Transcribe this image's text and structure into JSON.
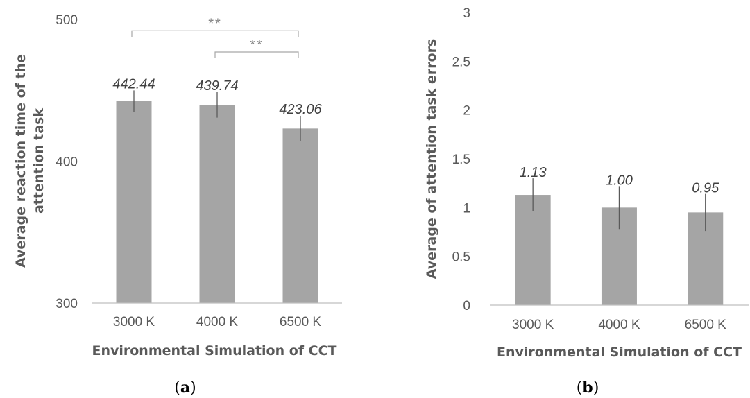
{
  "colors": {
    "bar": "#a5a5a5",
    "axis": "#bfbfbf",
    "error": "#595959",
    "bracket": "#a6a6a6"
  },
  "chart_data": [
    {
      "type": "bar",
      "panel_label": {
        "pre": "(",
        "bold": "a",
        "post": ")"
      },
      "categories": [
        "3000 K",
        "4000 K",
        "6500 K"
      ],
      "values": [
        442.44,
        439.74,
        423.06
      ],
      "data_labels": [
        "442.44",
        "439.74",
        "423.06"
      ],
      "error": [
        7.5,
        9,
        9
      ],
      "ylim": [
        300,
        500
      ],
      "yticks": [
        300,
        400,
        500
      ],
      "xlabel": "Environmental Simulation of CCT",
      "ylabel": [
        "Average reaction time of the",
        "attention task"
      ],
      "grid": false,
      "significance": [
        {
          "from": 0,
          "to": 2,
          "y": 492,
          "label": "**"
        },
        {
          "from": 1,
          "to": 2,
          "y": 477,
          "label": "**"
        }
      ]
    },
    {
      "type": "bar",
      "panel_label": {
        "pre": "(",
        "bold": "b",
        "post": ")"
      },
      "categories": [
        "3000 K",
        "4000 K",
        "6500 K"
      ],
      "values": [
        1.13,
        1.0,
        0.95
      ],
      "data_labels": [
        "1.13",
        "1.00",
        "0.95"
      ],
      "error": [
        0.17,
        0.22,
        0.19
      ],
      "ylim": [
        0,
        3
      ],
      "yticks": [
        "0",
        "0.5",
        "1",
        "1.5",
        "2",
        "2.5",
        "3"
      ],
      "xlabel": "Environmental Simulation of CCT",
      "ylabel": [
        "Average of attention task errors"
      ],
      "grid": false
    }
  ]
}
